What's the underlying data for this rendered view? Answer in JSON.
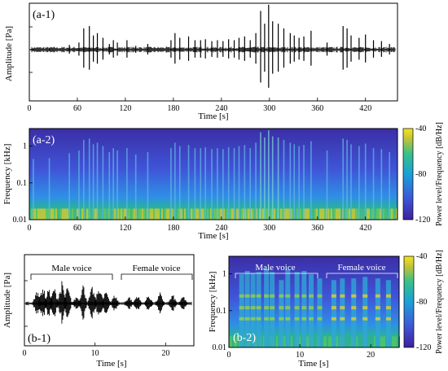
{
  "panels": {
    "a1": {
      "label": "(a-1)",
      "ylabel": "Amplitude [Pa]",
      "xlabel": "Time [s]",
      "xticks": [
        "0",
        "60",
        "120",
        "180",
        "240",
        "300",
        "360",
        "420"
      ]
    },
    "a2": {
      "label": "(a-2)",
      "ylabel": "Frequency [kHz]",
      "xlabel": "Time [s]",
      "xticks": [
        "0",
        "60",
        "120",
        "180",
        "240",
        "300",
        "360",
        "420"
      ],
      "yticks": [
        "1",
        "0.1",
        "0.01"
      ],
      "colorbar": {
        "label": "Power level/Frequency [dB/Hz]",
        "ticks": [
          "-40",
          "-80",
          "-120"
        ]
      }
    },
    "b1": {
      "label": "(b-1)",
      "ylabel": "Amplitude [Pa]",
      "xlabel": "Time [s]",
      "xticks": [
        "0",
        "10",
        "20"
      ],
      "male": "Male voice",
      "female": "Female voice"
    },
    "b2": {
      "label": "(b-2)",
      "ylabel": "Frequency [kHz]",
      "xlabel": "Time [s]",
      "xticks": [
        "0",
        "10",
        "20"
      ],
      "yticks": [
        "1",
        "0.1",
        "0.01"
      ],
      "male": "Male voice",
      "female": "Female voice",
      "colorbar": {
        "label": "Power level/Frequency [dB/Hz]",
        "ticks": [
          "-40",
          "-80",
          "-120"
        ]
      }
    }
  },
  "chart_data": [
    {
      "type": "line",
      "panel": "a-1",
      "xlabel": "Time [s]",
      "ylabel": "Amplitude [Pa]",
      "xlim": [
        0,
        460
      ],
      "ylim": [
        -1,
        1
      ],
      "x": [
        5,
        25,
        50,
        62,
        68,
        75,
        80,
        85,
        92,
        100,
        105,
        110,
        122,
        133,
        148,
        177,
        182,
        188,
        199,
        207,
        214,
        220,
        228,
        235,
        242,
        249,
        256,
        262,
        269,
        276,
        283,
        289,
        294,
        299,
        304,
        311,
        318,
        326,
        331,
        337,
        343,
        352,
        372,
        392,
        397,
        402,
        412,
        420,
        430,
        440,
        450
      ],
      "y": [
        0.02,
        0.03,
        0.1,
        0.15,
        0.45,
        0.5,
        0.3,
        0.35,
        0.25,
        0.12,
        0.2,
        0.15,
        0.2,
        0.08,
        0.12,
        0.2,
        0.35,
        0.25,
        0.28,
        0.2,
        0.2,
        0.22,
        0.18,
        0.2,
        0.18,
        0.22,
        0.2,
        0.25,
        0.28,
        0.2,
        0.35,
        0.82,
        0.55,
        0.95,
        0.6,
        0.55,
        0.45,
        0.35,
        0.3,
        0.25,
        0.28,
        0.4,
        0.15,
        0.5,
        0.45,
        0.3,
        0.25,
        0.32,
        0.2,
        0.18,
        0.12
      ]
    },
    {
      "type": "heatmap",
      "panel": "a-2",
      "xlabel": "Time [s]",
      "ylabel": "Frequency [kHz]",
      "xlim": [
        0,
        460
      ],
      "ylim": [
        0.01,
        3
      ],
      "yscale": "log",
      "zlabel": "Power level/Frequency [dB/Hz]",
      "zlim": [
        -120,
        -40
      ]
    },
    {
      "type": "line",
      "panel": "b-1",
      "xlabel": "Time [s]",
      "ylabel": "Amplitude [Pa]",
      "xlim": [
        0,
        24
      ],
      "ylim": [
        -1,
        1
      ],
      "x": [
        1.8,
        2.6,
        3.4,
        4.2,
        5.3,
        6.1,
        7.4,
        8.3,
        9.6,
        10.6,
        11.6,
        12.8,
        14.8,
        16,
        17.6,
        19.2,
        21,
        22.5
      ],
      "y": [
        0.45,
        0.6,
        0.5,
        0.55,
        0.7,
        0.55,
        0.25,
        0.65,
        0.55,
        0.6,
        0.45,
        0.3,
        0.25,
        0.3,
        0.3,
        0.35,
        0.3,
        0.25
      ]
    },
    {
      "type": "heatmap",
      "panel": "b-2",
      "xlabel": "Time [s]",
      "ylabel": "Frequency [kHz]",
      "xlim": [
        0,
        24
      ],
      "ylim": [
        0.01,
        3
      ],
      "yscale": "log",
      "zlabel": "Power level/Frequency [dB/Hz]",
      "zlim": [
        -120,
        -40
      ]
    }
  ]
}
